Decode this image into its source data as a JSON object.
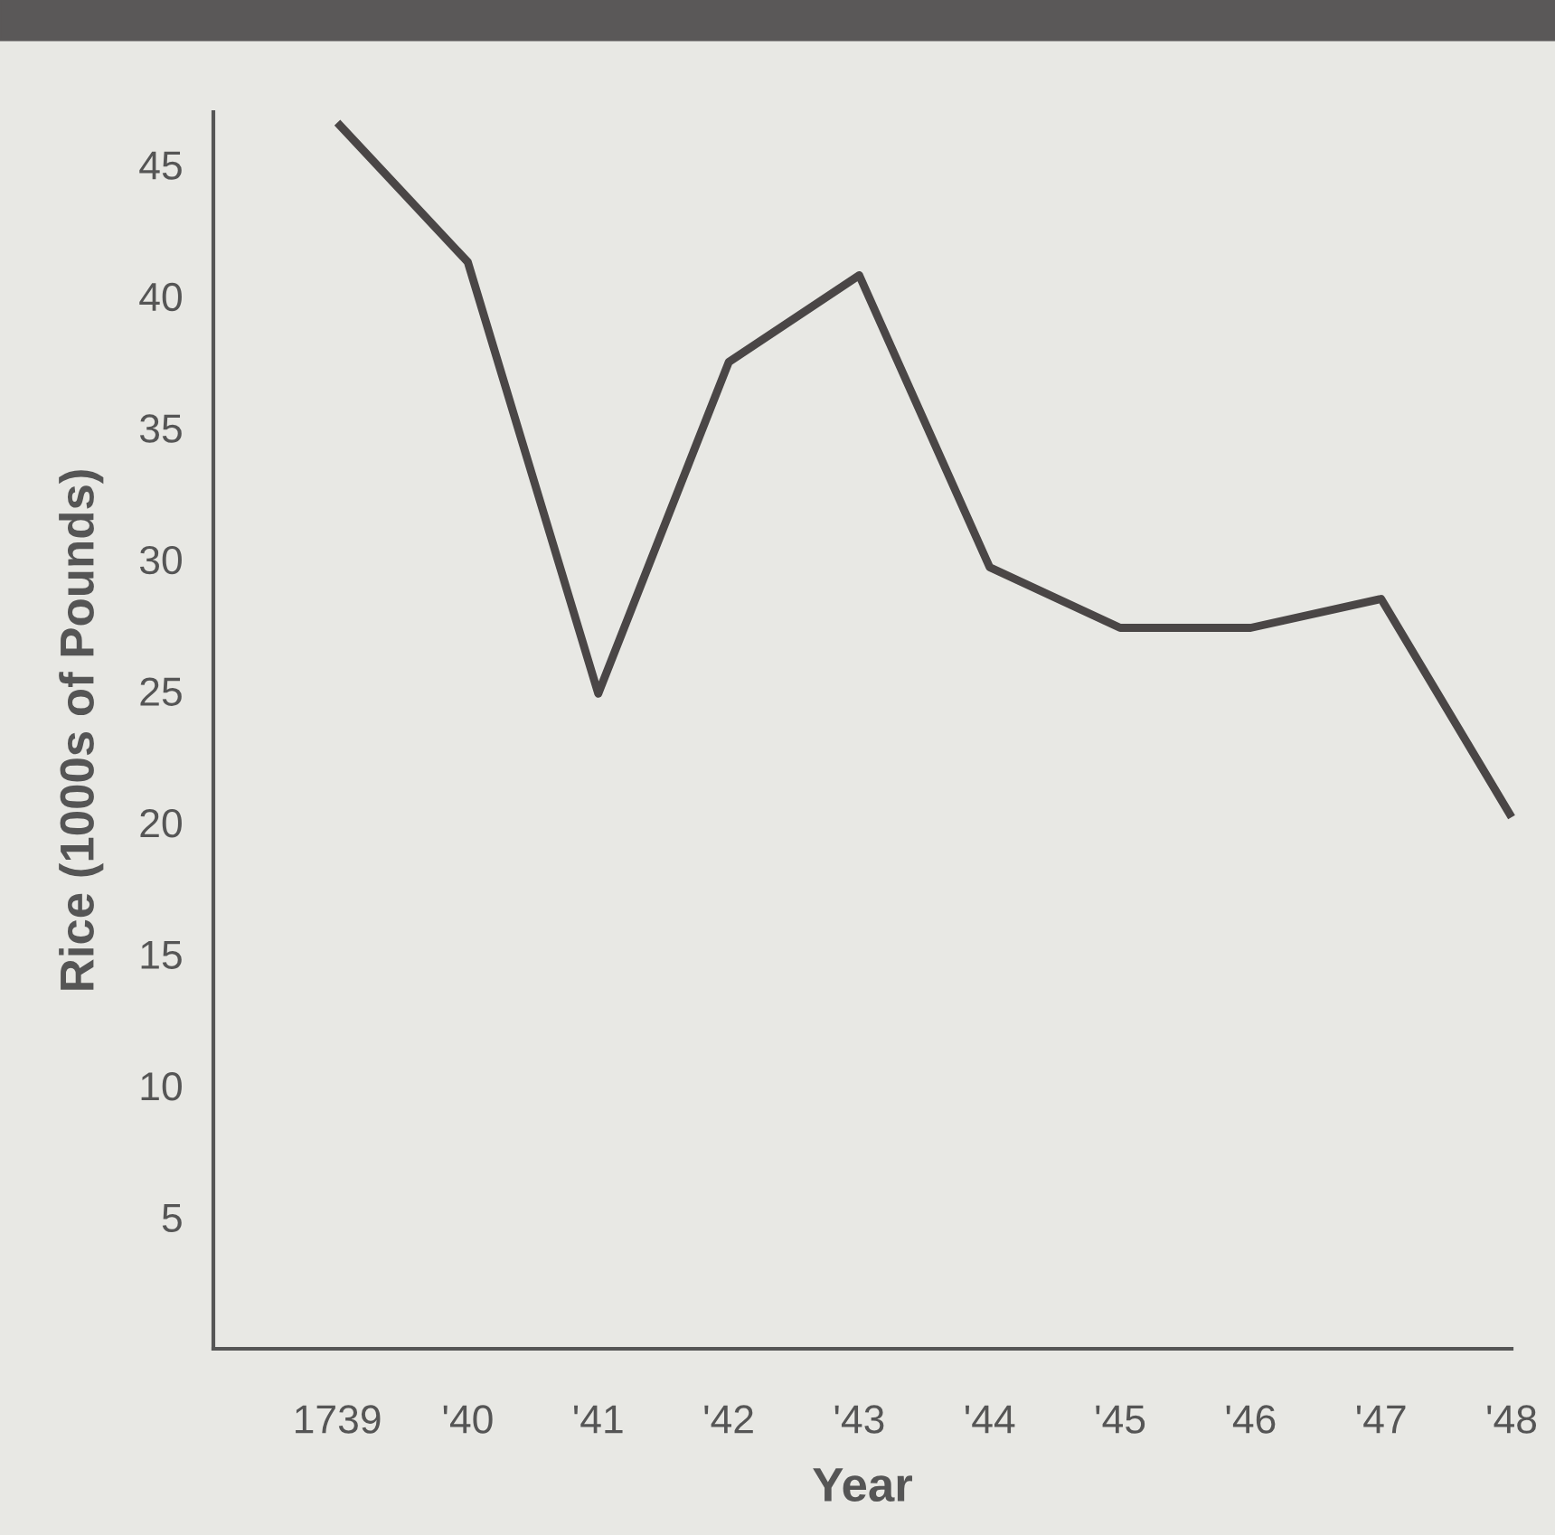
{
  "chart_data": {
    "type": "line",
    "xlabel": "Year",
    "ylabel": "Rice (1000s of Pounds)",
    "categories": [
      "1739",
      "'40",
      "'41",
      "'42",
      "'43",
      "'44",
      "'45",
      "'46",
      "'47",
      "'48"
    ],
    "series": [
      {
        "color": "#4a4646",
        "values": [
          46.6,
          41.3,
          24.9,
          37.5,
          40.8,
          29.7,
          27.4,
          27.4,
          28.5,
          20.2
        ]
      }
    ],
    "ylim": [
      0,
      47
    ],
    "yticks": [
      5,
      10,
      15,
      20,
      25,
      30,
      35,
      40,
      45
    ],
    "grid": false,
    "marker": "none",
    "line_style": "solid"
  }
}
